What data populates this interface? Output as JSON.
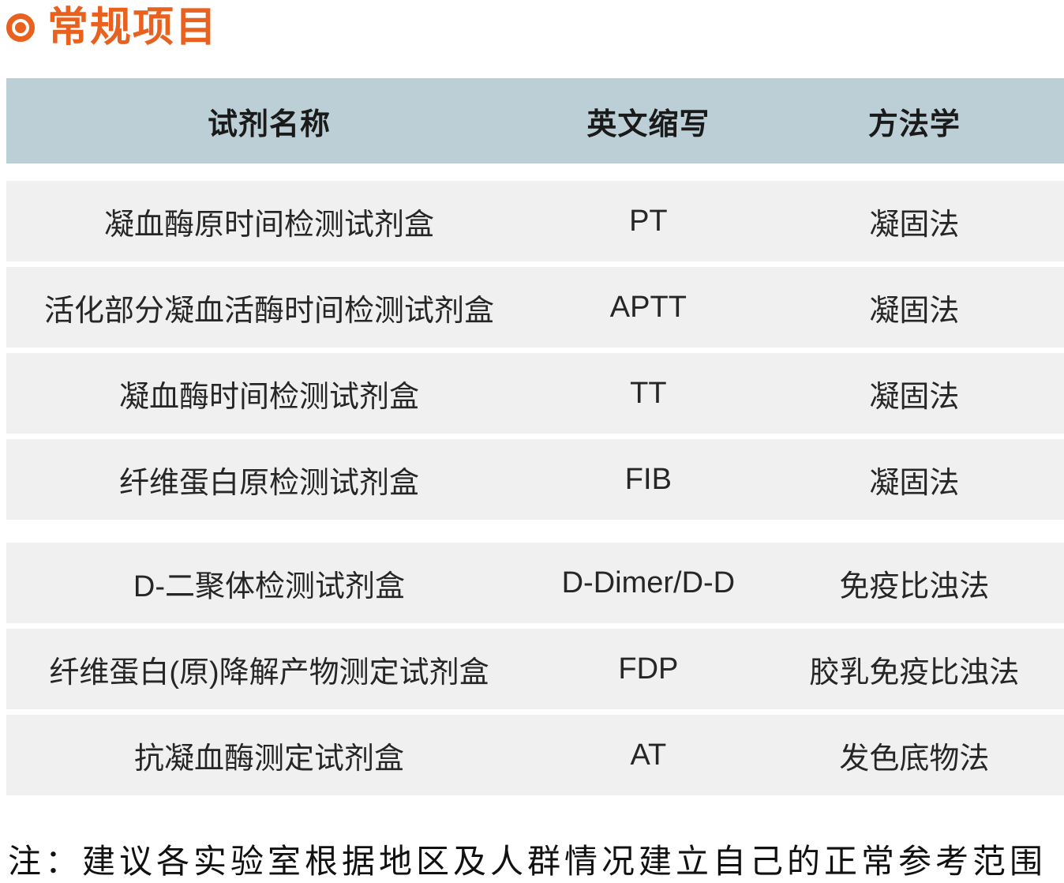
{
  "title": {
    "text": "常规项目",
    "bullet_icon": "bullseye",
    "accent_color": "#e8611f"
  },
  "colors": {
    "accent": "#e8611f",
    "header_bg": "#bccfd6",
    "row_bg": "#f0f0f0",
    "header_text": "#1a1a1a",
    "row_text": "#262626"
  },
  "table": {
    "headers": [
      "试剂名称",
      "英文缩写",
      "方法学"
    ],
    "groups": [
      {
        "rows": [
          {
            "name": "凝血酶原时间检测试剂盒",
            "abbr": "PT",
            "method": "凝固法"
          },
          {
            "name": "活化部分凝血活酶时间检测试剂盒",
            "abbr": "APTT",
            "method": "凝固法"
          },
          {
            "name": "凝血酶时间检测试剂盒",
            "abbr": "TT",
            "method": "凝固法"
          },
          {
            "name": "纤维蛋白原检测试剂盒",
            "abbr": "FIB",
            "method": "凝固法"
          }
        ]
      },
      {
        "rows": [
          {
            "name": "D-二聚体检测试剂盒",
            "abbr": "D-Dimer/D-D",
            "method": "免疫比浊法"
          },
          {
            "name": "纤维蛋白(原)降解产物测定试剂盒",
            "abbr": "FDP",
            "method": "胶乳免疫比浊法"
          },
          {
            "name": "抗凝血酶测定试剂盒",
            "abbr": "AT",
            "method": "发色底物法"
          }
        ]
      }
    ]
  },
  "note": "注：建议各实验室根据地区及人群情况建立自己的正常参考范围"
}
